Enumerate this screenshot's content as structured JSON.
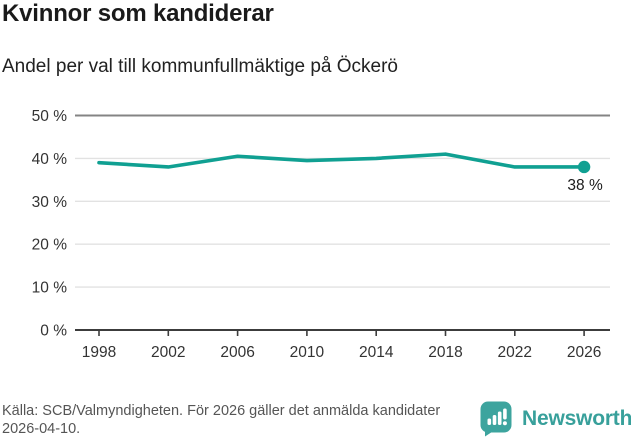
{
  "header": {
    "title": "Kvinnor som kandiderar",
    "subtitle": "Andel per val till kommunfullmäktige på Öckerö"
  },
  "chart_data": {
    "type": "line",
    "title": "Kvinnor som kandiderar",
    "subtitle": "Andel per val till kommunfullmäktige på Öckerö",
    "x": [
      1998,
      2002,
      2006,
      2010,
      2014,
      2018,
      2022,
      2026
    ],
    "values": [
      39,
      38,
      40.5,
      39.5,
      40,
      41,
      38,
      38
    ],
    "unit": "%",
    "ylim": [
      0,
      50
    ],
    "yticks": [
      0,
      10,
      20,
      30,
      40,
      50
    ],
    "ytick_suffix": " %",
    "end_label": "38 %",
    "grid": true,
    "legend": "none",
    "line_color": "#10a092",
    "grid_color": "#e2e2e2",
    "top_grid_color": "#848484",
    "axis_color": "#3c3c3c",
    "tick_label_color": "#333333",
    "end_label_color": "#1a1a1a"
  },
  "footer": {
    "source": "Källa: SCB/Valmyndigheten. För 2026 gäller det anmälda kandidater 2026-04-10.",
    "brand": "Newsworthy",
    "brand_color": "#38a09b"
  }
}
